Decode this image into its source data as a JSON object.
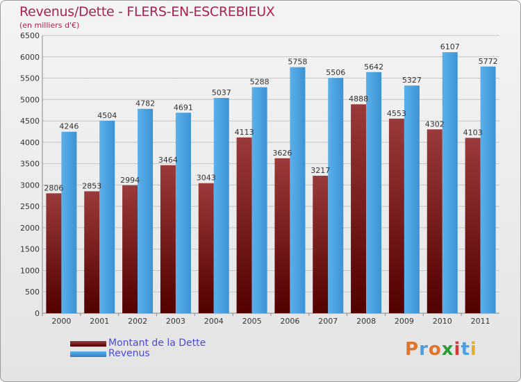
{
  "chart_data": {
    "type": "bar",
    "title": "Revenus/Dette - FLERS-EN-ESCREBIEUX",
    "subtitle": "(en milliers d'€)",
    "categories": [
      "2000",
      "2001",
      "2002",
      "2003",
      "2004",
      "2005",
      "2006",
      "2007",
      "2008",
      "2009",
      "2010",
      "2011"
    ],
    "series": [
      {
        "name": "Montant de la Dette",
        "values": [
          2806,
          2853,
          2994,
          3464,
          3043,
          4113,
          3626,
          3217,
          4888,
          4553,
          4302,
          4103
        ]
      },
      {
        "name": "Revenus",
        "values": [
          4246,
          4504,
          4782,
          4691,
          5037,
          5288,
          5758,
          5506,
          5642,
          5327,
          6107,
          5772
        ]
      }
    ],
    "yticks": [
      0,
      500,
      1000,
      1500,
      2000,
      2500,
      3000,
      3500,
      4000,
      4500,
      5000,
      5500,
      6000,
      6500
    ],
    "ylim": [
      0,
      6500
    ],
    "grid": true,
    "legend_position": "bottom-left",
    "colors": {
      "title": "#a8234f",
      "debt_top": "#9b3a3a",
      "debt_bottom": "#520000",
      "revenue_light": "#5ab0ea",
      "revenue_dark": "#2f7fc4",
      "legend_text": "#4a4ad8"
    }
  },
  "legend": {
    "debt_label": "Montant de la Dette",
    "revenue_label": "Revenus"
  },
  "logo": {
    "text": "Proxiti"
  }
}
